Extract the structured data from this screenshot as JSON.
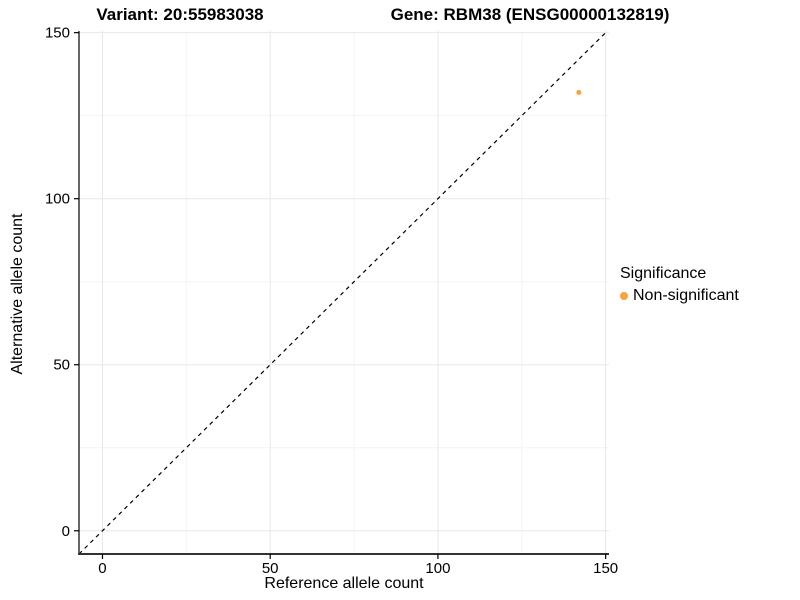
{
  "chart_data": {
    "type": "scatter",
    "title_left": "Variant: 20:55983038",
    "title_right": "Gene: RBM38 (ENSG00000132819)",
    "xlabel": "Reference allele count",
    "ylabel": "Alternative allele count",
    "x_ticks": [
      0,
      50,
      100,
      150
    ],
    "y_ticks": [
      0,
      50,
      100,
      150
    ],
    "x_minor_ticks": [
      25,
      75,
      125
    ],
    "y_minor_ticks": [
      25,
      75,
      125
    ],
    "xlim": [
      -7,
      151
    ],
    "ylim": [
      -7,
      150.5
    ],
    "grid": "major-and-minor",
    "identity_line": {
      "slope": 1,
      "intercept": 0,
      "style": "dashed",
      "color": "#000000"
    },
    "series": [
      {
        "name": "Non-significant",
        "color": "#F9A242",
        "points": [
          {
            "x": 142,
            "y": 132
          }
        ]
      }
    ],
    "legend": {
      "position": "right",
      "title": "Significance",
      "items": [
        {
          "label": "Non-significant",
          "color": "#F9A242"
        }
      ]
    },
    "colors": {
      "point": "#F9A242",
      "axis_line": "#333333",
      "grid_major": "#e8e8e8",
      "grid_minor": "#f4f4f4",
      "background": "#ffffff"
    }
  }
}
